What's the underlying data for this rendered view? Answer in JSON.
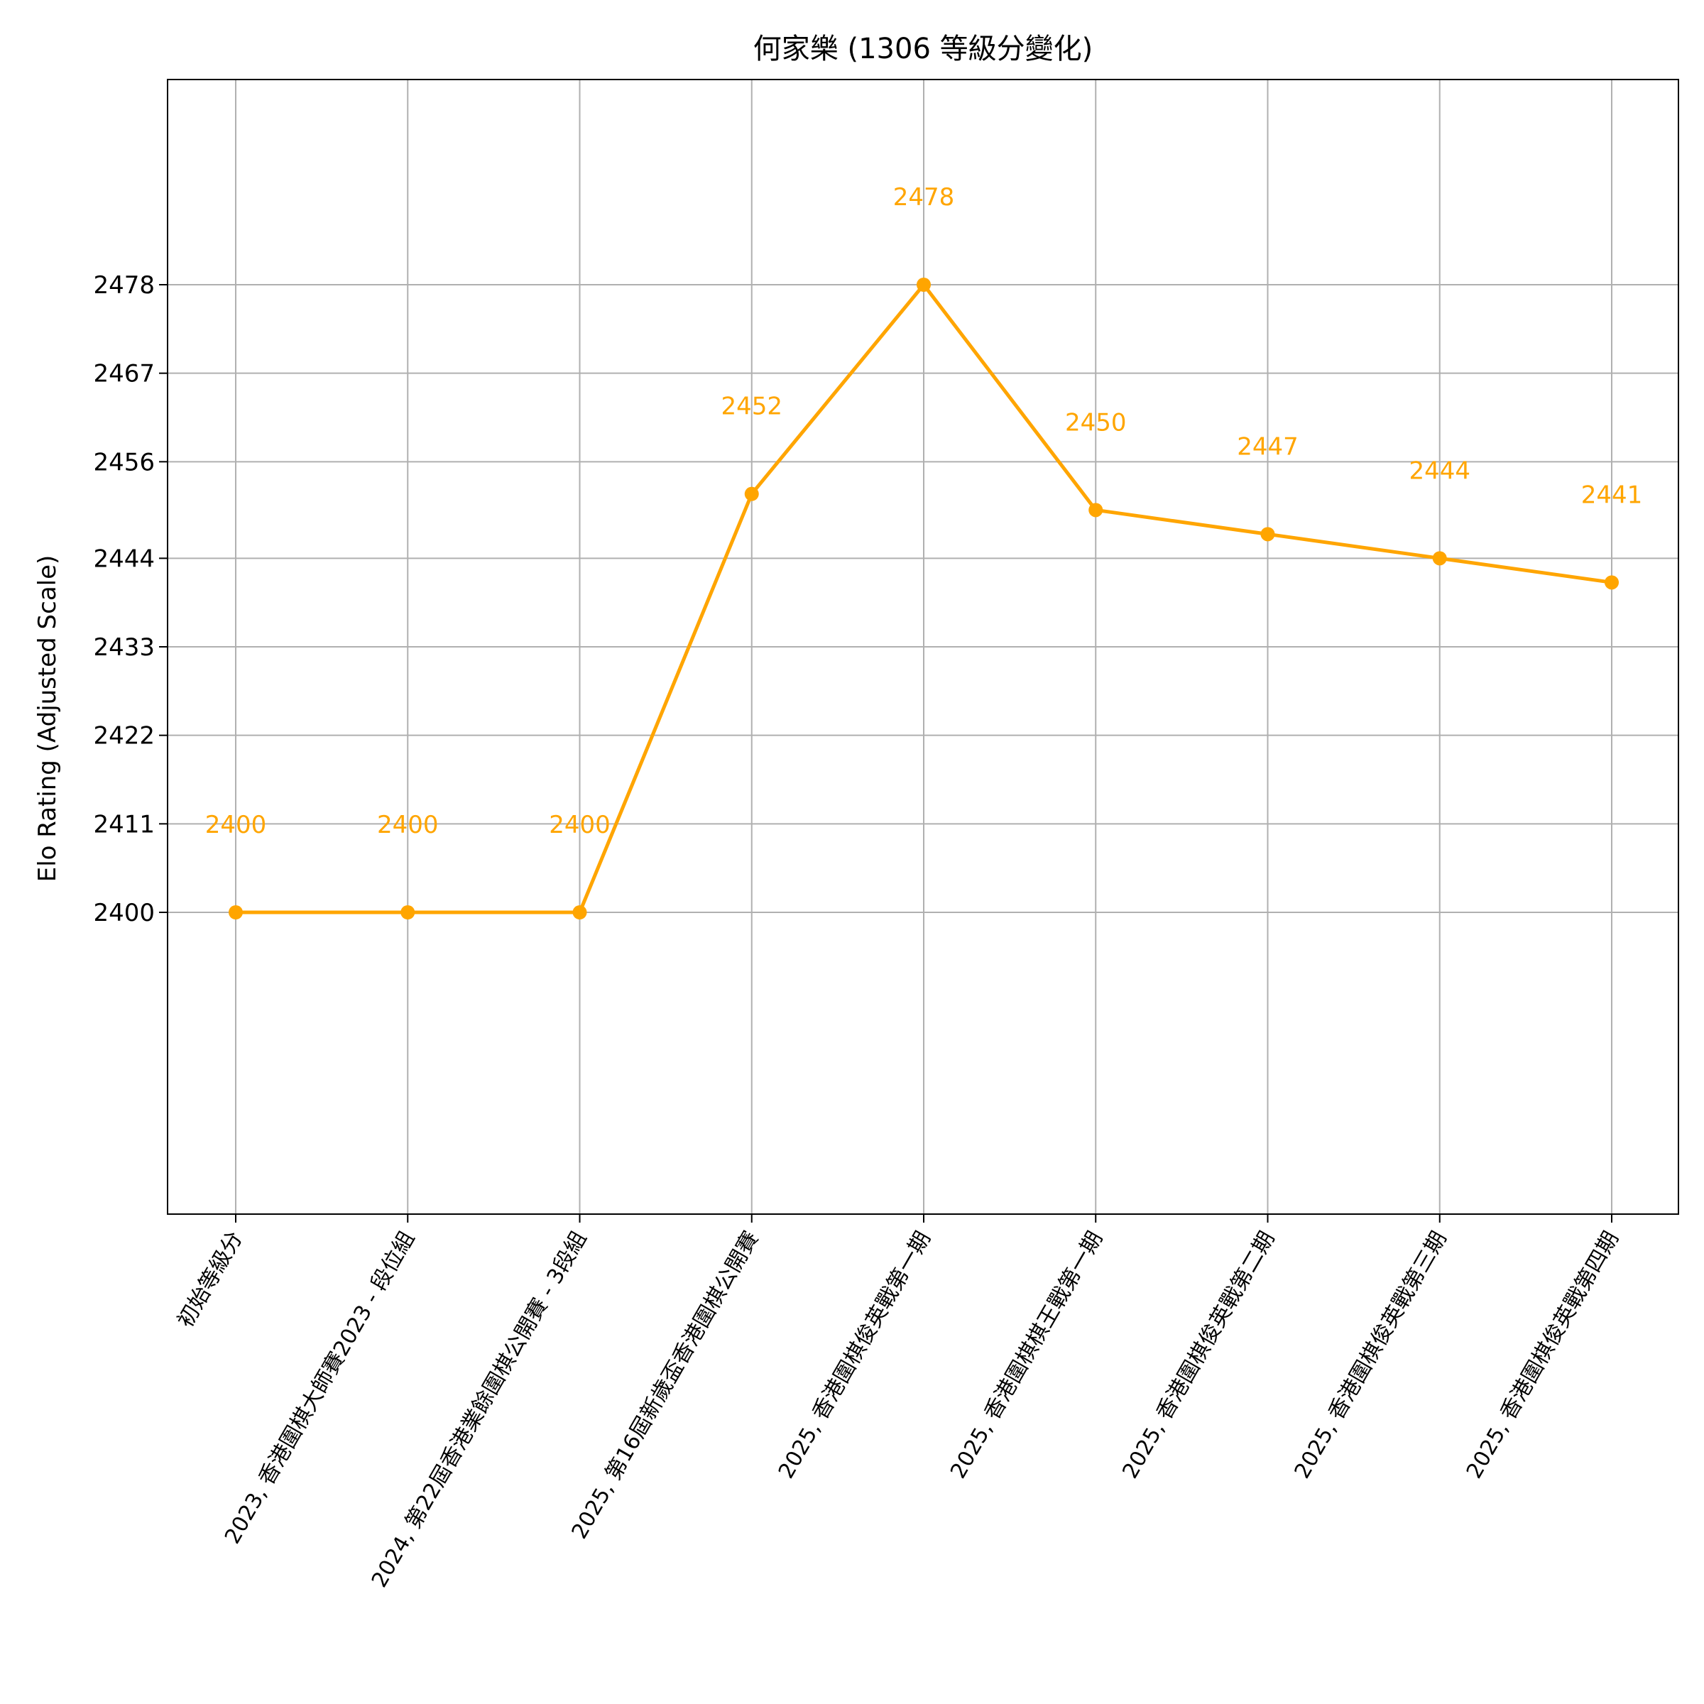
{
  "chart_data": {
    "type": "line",
    "title": "何家樂 (1306 等級分變化)",
    "ylabel": "Elo Rating (Adjusted Scale)",
    "xlabel": "",
    "categories": [
      "初始等級分",
      "2023, 香港圍棋大師賽2023 - 段位組",
      "2024, 第22屆香港業餘圍棋公開賽 - 3段組",
      "2025, 第16屆新歲盃香港圍棋公開賽",
      "2025, 香港圍棋俊英戰第一期",
      "2025, 香港圍棋棋王戰第一期",
      "2025, 香港圍棋俊英戰第二期",
      "2025, 香港圍棋俊英戰第三期",
      "2025, 香港圍棋俊英戰第四期"
    ],
    "series": [
      {
        "values": [
          2400,
          2400,
          2400,
          2452,
          2478,
          2450,
          2447,
          2444,
          2441
        ],
        "color": "#ffa500"
      }
    ],
    "yticks": [
      2400,
      2411,
      2422,
      2433,
      2444,
      2456,
      2467,
      2478
    ],
    "ytick_labels": [
      "2400",
      "2411",
      "2422",
      "2433",
      "2444",
      "2456",
      "2467",
      "2478"
    ],
    "point_labels": [
      "2400",
      "2400",
      "2400",
      "2452",
      "2478",
      "2450",
      "2447",
      "2444",
      "2441"
    ],
    "ylim": [
      2362.5,
      2503.5
    ],
    "grid": true,
    "legend": "none"
  }
}
